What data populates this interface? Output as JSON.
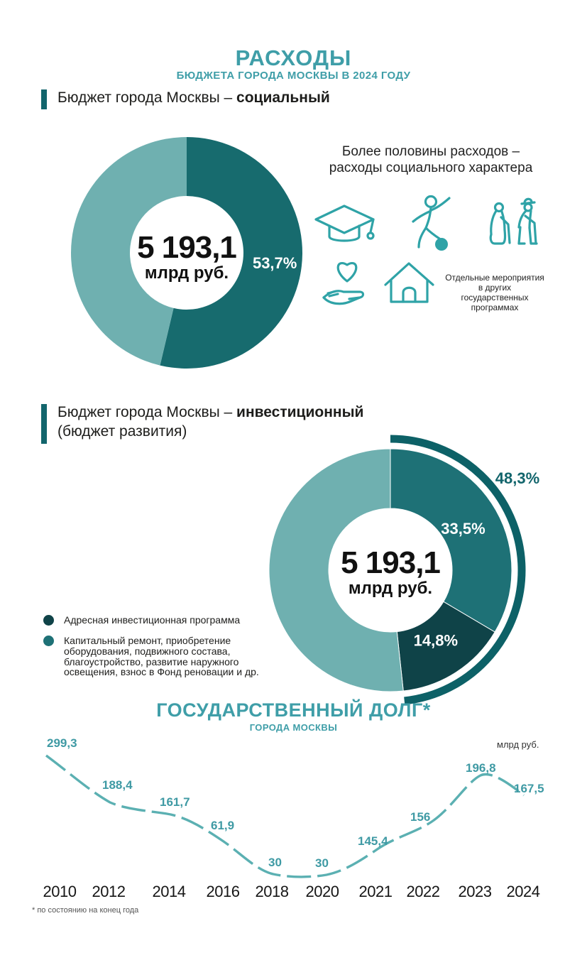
{
  "page": {
    "title": "РАСХОДЫ",
    "subtitle": "БЮДЖЕТА ГОРОДА МОСКВЫ В 2024 ГОДУ"
  },
  "colors": {
    "accent_teal": "#3f9ea8",
    "bar_teal": "#12656c",
    "donut_dark": "#176b6e",
    "donut_medium": "#1e7176",
    "donut_darkest": "#0f4348",
    "donut_light": "#6fb0b0",
    "icon_teal": "#2fa3a7",
    "line_teal": "#5bb0b2"
  },
  "sections": {
    "social": {
      "heading_plain": "Бюджет города Москвы – ",
      "heading_bold": "социальный",
      "lead": [
        "Более половины расходов –",
        "расходы социального характера"
      ],
      "note": [
        "Отдельные мероприятия",
        "в других государственных",
        "программах"
      ],
      "icons": [
        "graduation-cap-icon",
        "athlete-with-ball-icon",
        "pensioners-icon",
        "heart-in-hand-icon",
        "house-icon"
      ]
    },
    "invest": {
      "heading_plain": "Бюджет города Москвы – ",
      "heading_bold": "инвестиционный",
      "heading_line2": "(бюджет развития)"
    }
  },
  "chart_data": [
    {
      "type": "pie",
      "name": "social-budget-donut",
      "title": "Бюджет города Москвы – социальный",
      "center_value": "5 193,1",
      "center_unit": "млрд руб.",
      "slices": [
        {
          "label": "53,7%",
          "value": 53.7,
          "color": "#176b6e",
          "label_color": "#ffffff"
        },
        {
          "label": "",
          "value": 46.3,
          "color": "#6fb0b0"
        }
      ]
    },
    {
      "type": "pie",
      "name": "investment-budget-donut",
      "title": "Бюджет города Москвы – инвестиционный (бюджет развития)",
      "center_value": "5 193,1",
      "center_unit": "млрд руб.",
      "slices": [
        {
          "label": "33,5%",
          "value": 33.5,
          "color": "#1e7176",
          "label_color": "#ffffff"
        },
        {
          "label": "14,8%",
          "value": 14.8,
          "color": "#0f4348",
          "label_color": "#ffffff"
        },
        {
          "label": "",
          "value": 51.7,
          "color": "#6fb0b0"
        }
      ],
      "outer_arc": {
        "label": "48,3%",
        "value": 48.3,
        "color": "#0d6167"
      },
      "legend": [
        {
          "color": "#0f4348",
          "text": "Адресная инвестиционная программа"
        },
        {
          "color": "#1e7176",
          "text": "Капитальный ремонт, приобретение оборудования, подвижного состава, благоустройство, развитие наружного освещения, взнос в Фонд реновации и др."
        }
      ]
    },
    {
      "type": "line",
      "name": "state-debt-chart",
      "title": "ГОСУДАРСТВЕННЫЙ ДОЛГ*",
      "subtitle": "ГОРОДА МОСКВЫ",
      "unit": "млрд руб.",
      "x": [
        "2010",
        "2012",
        "2014",
        "2016",
        "2018",
        "2020",
        "2021",
        "2022",
        "2023",
        "2024"
      ],
      "values": [
        299.3,
        188.4,
        161.7,
        61.9,
        30,
        30,
        145.4,
        156,
        196.8,
        167.5
      ],
      "labels": [
        "299,3",
        "188,4",
        "161,7",
        "61,9",
        "30",
        "30",
        "145,4",
        "156",
        "196,8",
        "167,5"
      ],
      "line_color": "#5bb0b2",
      "label_color": "#3f9aa4",
      "footnote": "*  по состоянию на конец года",
      "grid": false,
      "legend_position": "none"
    }
  ]
}
